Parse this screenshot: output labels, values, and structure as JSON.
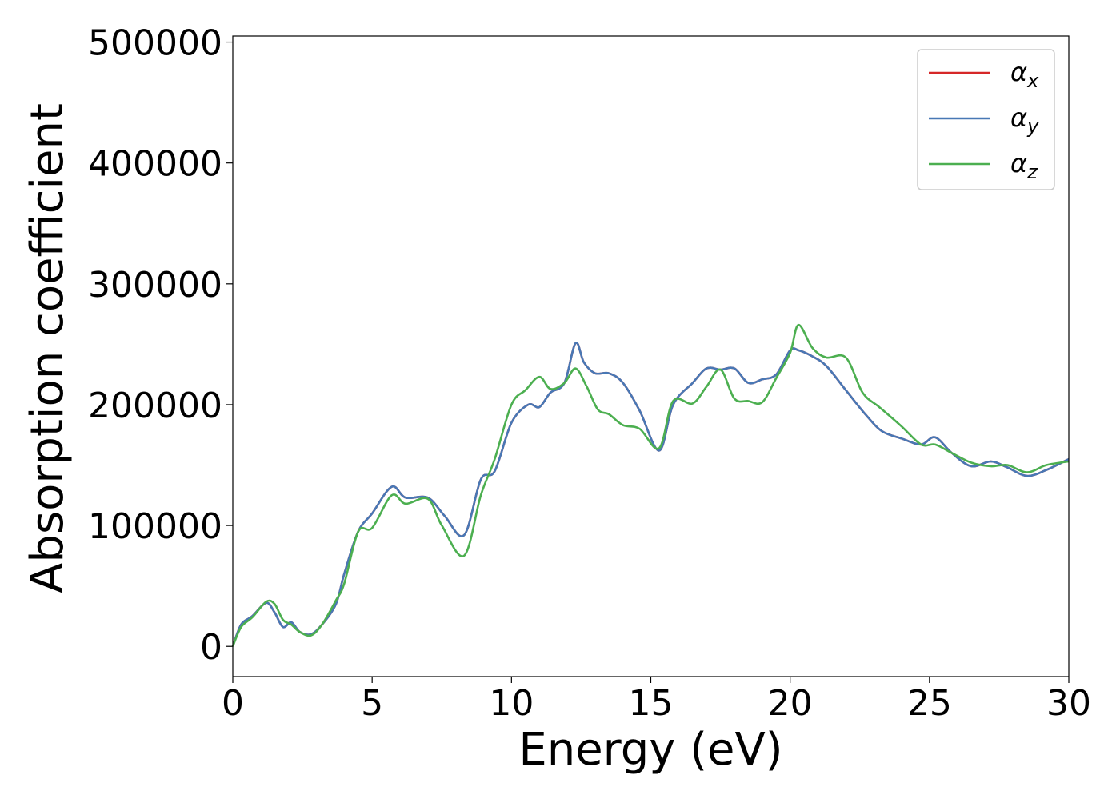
{
  "chart_data": {
    "type": "line",
    "xlabel": "Energy (eV)",
    "ylabel": "Absorption coefficient",
    "xlim": [
      0,
      30
    ],
    "ylim": [
      -25000,
      505000
    ],
    "xticks": [
      0,
      5,
      10,
      15,
      20,
      25,
      30
    ],
    "yticks": [
      0,
      100000,
      200000,
      300000,
      400000,
      500000
    ],
    "grid": false,
    "legend_position": "top-right",
    "series": [
      {
        "name": "αx",
        "label_base": "α",
        "label_sub": "x",
        "color": "#d62728",
        "x": [
          0,
          0.3,
          0.7,
          1.2,
          1.5,
          1.8,
          2.1,
          2.4,
          2.8,
          3.2,
          3.7,
          4.0,
          4.5,
          5.0,
          5.7,
          6.2,
          7.0,
          7.6,
          8.3,
          8.9,
          9.4,
          10.0,
          10.6,
          11.0,
          11.4,
          11.9,
          12.3,
          12.6,
          13.0,
          13.5,
          14.0,
          14.6,
          15.3,
          15.8,
          16.5,
          17.0,
          17.5,
          18.0,
          18.5,
          19.0,
          19.5,
          20.0,
          20.3,
          20.8,
          21.3,
          22.0,
          22.7,
          23.3,
          24.0,
          24.7,
          25.2,
          25.8,
          26.5,
          27.2,
          27.8,
          28.5,
          29.2,
          30.0
        ],
        "y": [
          0,
          18000,
          25000,
          36000,
          28000,
          16000,
          20000,
          12000,
          10000,
          18000,
          35000,
          60000,
          95000,
          110000,
          132000,
          123000,
          123000,
          108000,
          92000,
          138000,
          145000,
          185000,
          200000,
          198000,
          210000,
          218000,
          251000,
          235000,
          226000,
          226000,
          218000,
          195000,
          162000,
          200000,
          218000,
          230000,
          229000,
          230000,
          218000,
          221000,
          225000,
          245000,
          245000,
          240000,
          232000,
          212000,
          192000,
          178000,
          172000,
          167000,
          173000,
          160000,
          149000,
          153000,
          148000,
          141000,
          146000,
          155000
        ]
      },
      {
        "name": "αy",
        "label_base": "α",
        "label_sub": "y",
        "color": "#4878b5",
        "x": [
          0,
          0.3,
          0.7,
          1.2,
          1.5,
          1.8,
          2.1,
          2.4,
          2.8,
          3.2,
          3.7,
          4.0,
          4.5,
          5.0,
          5.7,
          6.2,
          7.0,
          7.6,
          8.3,
          8.9,
          9.4,
          10.0,
          10.6,
          11.0,
          11.4,
          11.9,
          12.3,
          12.6,
          13.0,
          13.5,
          14.0,
          14.6,
          15.3,
          15.8,
          16.5,
          17.0,
          17.5,
          18.0,
          18.5,
          19.0,
          19.5,
          20.0,
          20.3,
          20.8,
          21.3,
          22.0,
          22.7,
          23.3,
          24.0,
          24.7,
          25.2,
          25.8,
          26.5,
          27.2,
          27.8,
          28.5,
          29.2,
          30.0
        ],
        "y": [
          0,
          18000,
          25000,
          36000,
          28000,
          16000,
          20000,
          12000,
          10000,
          18000,
          35000,
          60000,
          95000,
          110000,
          132000,
          123000,
          123000,
          108000,
          92000,
          138000,
          145000,
          185000,
          200000,
          198000,
          210000,
          218000,
          251000,
          235000,
          226000,
          226000,
          218000,
          195000,
          162000,
          200000,
          218000,
          230000,
          229000,
          230000,
          218000,
          221000,
          225000,
          245000,
          245000,
          240000,
          232000,
          212000,
          192000,
          178000,
          172000,
          167000,
          173000,
          160000,
          149000,
          153000,
          148000,
          141000,
          146000,
          155000
        ]
      },
      {
        "name": "αz",
        "label_base": "α",
        "label_sub": "z",
        "color": "#4caf50",
        "x": [
          0,
          0.3,
          0.7,
          1.2,
          1.5,
          1.8,
          2.1,
          2.4,
          2.8,
          3.2,
          3.7,
          4.0,
          4.5,
          5.0,
          5.7,
          6.2,
          7.0,
          7.5,
          8.3,
          8.9,
          9.4,
          10.0,
          10.5,
          11.0,
          11.4,
          11.9,
          12.3,
          12.7,
          13.1,
          13.5,
          14.0,
          14.6,
          15.3,
          15.8,
          16.5,
          17.0,
          17.5,
          18.0,
          18.5,
          19.0,
          19.5,
          20.0,
          20.3,
          20.8,
          21.3,
          22.0,
          22.6,
          23.2,
          24.0,
          24.7,
          25.2,
          25.8,
          26.5,
          27.2,
          27.8,
          28.5,
          29.2,
          30.0
        ],
        "y": [
          0,
          16000,
          24000,
          37000,
          35000,
          22000,
          18000,
          12000,
          9000,
          18000,
          38000,
          52000,
          95000,
          98000,
          125000,
          118000,
          122000,
          100000,
          75000,
          125000,
          155000,
          200000,
          212000,
          223000,
          213000,
          218000,
          230000,
          215000,
          196000,
          192000,
          183000,
          180000,
          164000,
          203000,
          201000,
          215000,
          229000,
          205000,
          203000,
          202000,
          222000,
          243000,
          266000,
          247000,
          239000,
          239000,
          210000,
          198000,
          182000,
          167000,
          167000,
          160000,
          152000,
          149000,
          150000,
          144000,
          150000,
          153000
        ]
      }
    ]
  }
}
